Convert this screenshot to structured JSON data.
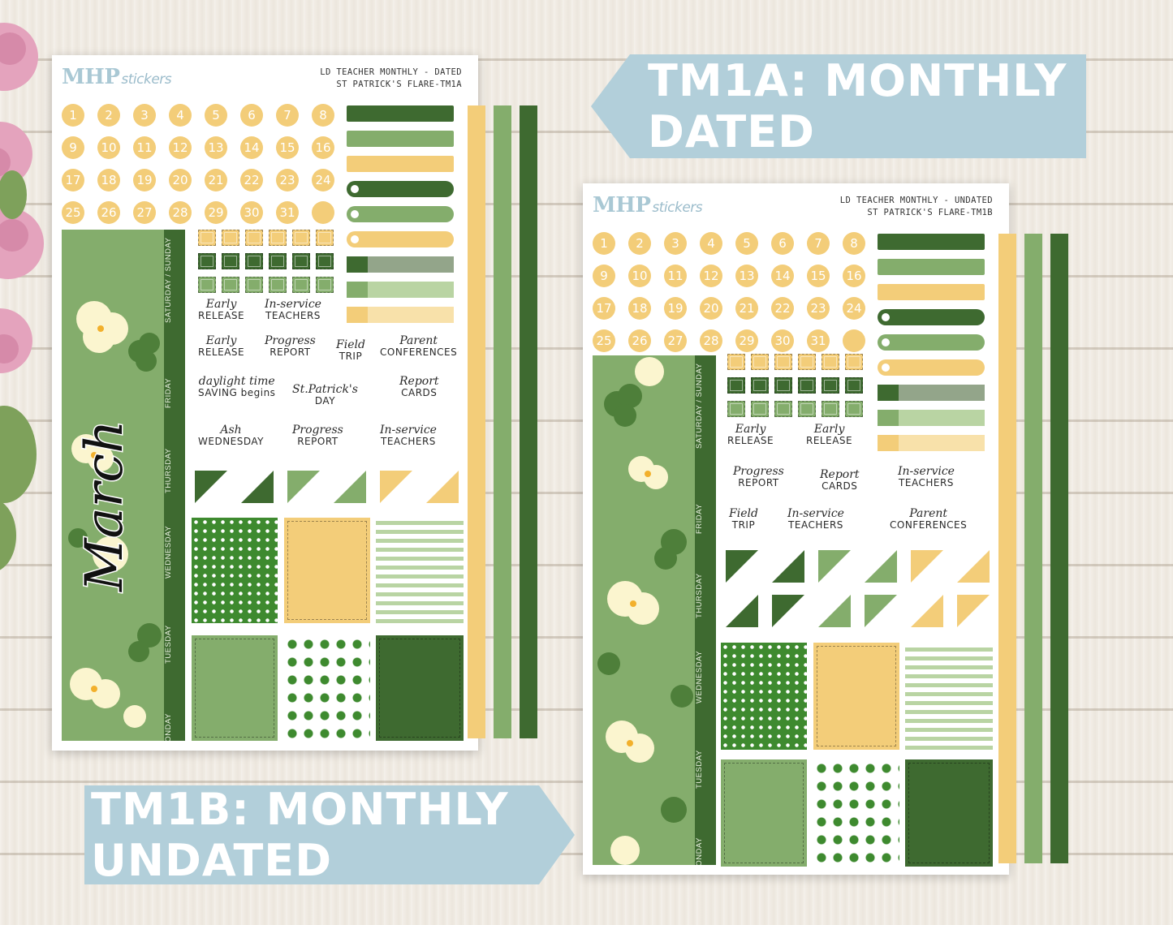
{
  "labels": {
    "tm1a": "TM1A: MONTHLY DATED",
    "tm1b": "TM1B: MONTHLY UNDATED"
  },
  "sheets": [
    {
      "logo_main": "MHP",
      "logo_small": "stickers",
      "title_line1": "LD TEACHER MONTHLY - DATED",
      "title_line2": "ST PATRICK'S FLARE-TM1A",
      "banner_word": "March",
      "days": [
        "SATURDAY / SUNDAY",
        "FRIDAY",
        "THURSDAY",
        "WEDNESDAY",
        "TUESDAY",
        "MONDAY"
      ],
      "numbers": [
        "1",
        "2",
        "3",
        "4",
        "5",
        "6",
        "7",
        "8",
        "9",
        "10",
        "11",
        "12",
        "13",
        "14",
        "15",
        "16",
        "17",
        "18",
        "19",
        "20",
        "21",
        "22",
        "23",
        "24",
        "25",
        "26",
        "27",
        "28",
        "29",
        "30",
        "31",
        ""
      ],
      "words": [
        {
          "script": "Early",
          "caps": "RELEASE"
        },
        {
          "script": "In-service",
          "caps": "TEACHERS"
        },
        {
          "script": "Early",
          "caps": "RELEASE"
        },
        {
          "script": "Progress",
          "caps": "REPORT"
        },
        {
          "script": "Field",
          "caps": "TRIP"
        },
        {
          "script": "Parent",
          "caps": "CONFERENCES"
        },
        {
          "script": "daylight time",
          "caps": "SAVING begins"
        },
        {
          "script": "St.Patrick's",
          "caps": "DAY"
        },
        {
          "script": "Report",
          "caps": "CARDS"
        },
        {
          "script": "Ash",
          "caps": "WEDNESDAY"
        },
        {
          "script": "Progress",
          "caps": "REPORT"
        },
        {
          "script": "In-service",
          "caps": "TEACHERS"
        }
      ]
    },
    {
      "logo_main": "MHP",
      "logo_small": "stickers",
      "title_line1": "LD TEACHER MONTHLY - UNDATED",
      "title_line2": "ST PATRICK'S FLARE-TM1B",
      "days": [
        "SATURDAY / SUNDAY",
        "FRIDAY",
        "THURSDAY",
        "WEDNESDAY",
        "TUESDAY",
        "MONDAY"
      ],
      "numbers": [
        "1",
        "2",
        "3",
        "4",
        "5",
        "6",
        "7",
        "8",
        "9",
        "10",
        "11",
        "12",
        "13",
        "14",
        "15",
        "16",
        "17",
        "18",
        "19",
        "20",
        "21",
        "22",
        "23",
        "24",
        "25",
        "26",
        "27",
        "28",
        "29",
        "30",
        "31",
        ""
      ],
      "words": [
        {
          "script": "Early",
          "caps": "RELEASE"
        },
        {
          "script": "Early",
          "caps": "RELEASE"
        },
        {
          "script": "Progress",
          "caps": "REPORT"
        },
        {
          "script": "Report",
          "caps": "CARDS"
        },
        {
          "script": "In-service",
          "caps": "TEACHERS"
        },
        {
          "script": "Field",
          "caps": "TRIP"
        },
        {
          "script": "In-service",
          "caps": "TEACHERS"
        },
        {
          "script": "Parent",
          "caps": "CONFERENCES"
        }
      ]
    }
  ],
  "colors": {
    "dark_green": "#3e6a30",
    "mid_green": "#84ad6c",
    "light_green": "#b9d4a3",
    "yellow": "#f3cd79",
    "light_yellow": "#f8e1aa",
    "sage": "#93a58a",
    "label_blue": "#b2cfda"
  }
}
